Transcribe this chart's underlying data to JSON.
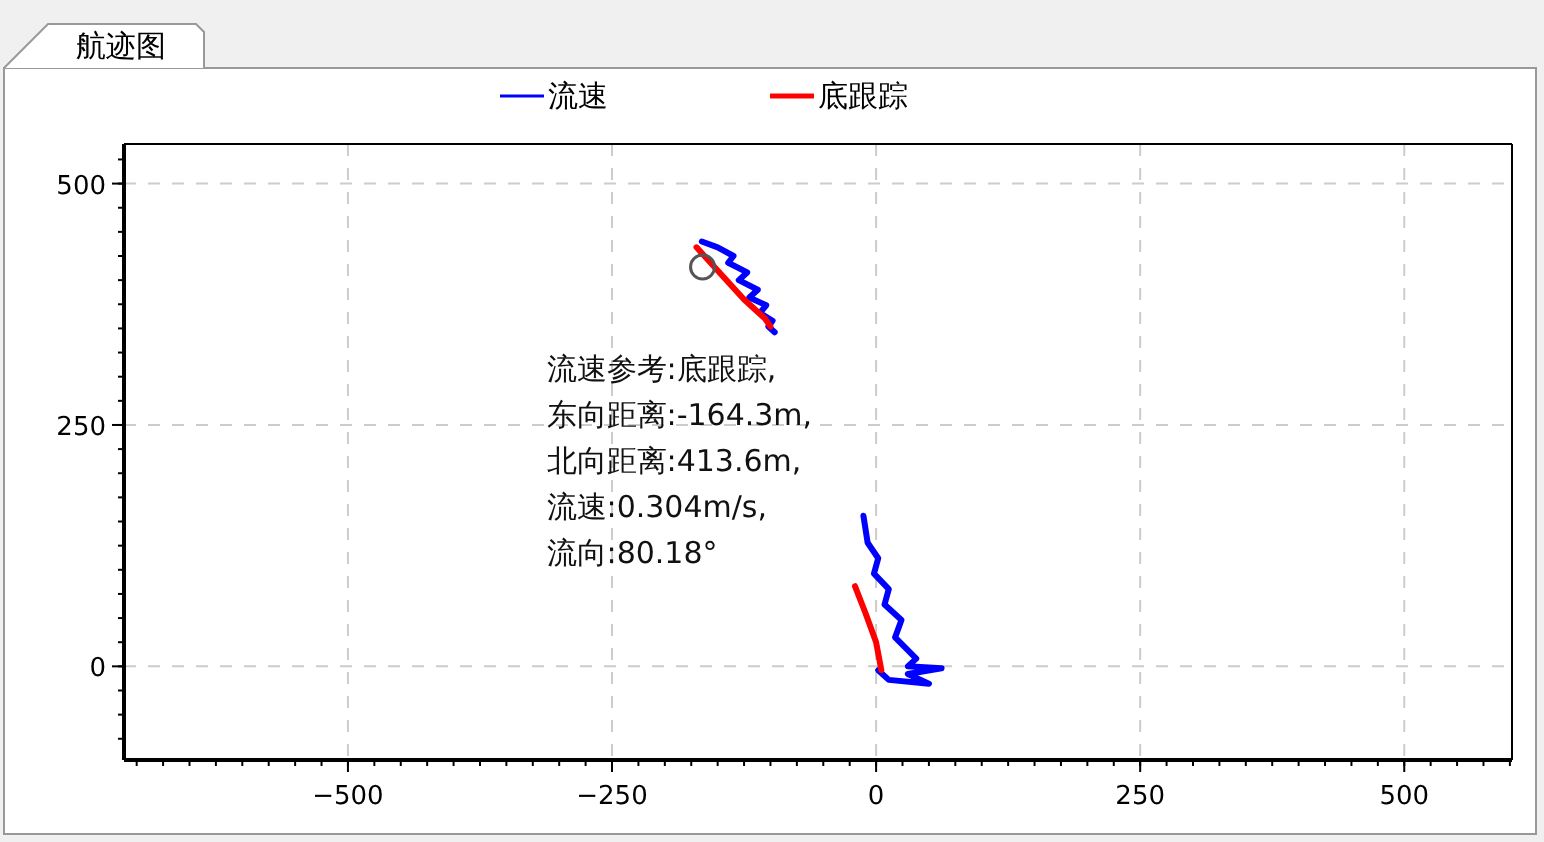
{
  "chart_data": {
    "type": "line",
    "title": "航迹图",
    "xlim": [
      -712,
      602
    ],
    "ylim": [
      -97,
      541
    ],
    "xticks": [
      -500,
      -250,
      0,
      250,
      500
    ],
    "yticks": [
      0,
      250,
      500
    ],
    "grid": true,
    "legend": "top",
    "marker": "none",
    "line_style": "solid",
    "series": [
      {
        "name": "流速",
        "color": "#0000ff",
        "x": [
          -165,
          -150,
          -135,
          -140,
          -122,
          -130,
          -112,
          -120,
          -104,
          -110,
          -98,
          -102,
          -96,
          null,
          -12,
          -8,
          2,
          -2,
          12,
          8,
          24,
          18,
          38,
          30,
          62,
          30,
          50,
          12,
          2
        ],
        "values": [
          440,
          434,
          425,
          418,
          408,
          400,
          390,
          382,
          374,
          366,
          358,
          352,
          346,
          null,
          156,
          128,
          112,
          96,
          80,
          64,
          48,
          30,
          8,
          0,
          -2,
          -8,
          -18,
          -14,
          -4
        ]
      },
      {
        "name": "底跟踪",
        "color": "#ff0000",
        "x": [
          -170,
          -150,
          -125,
          -105,
          -100,
          null,
          -20,
          -10,
          0,
          5
        ],
        "values": [
          434,
          410,
          380,
          360,
          352,
          null,
          83,
          55,
          25,
          -4
        ]
      }
    ],
    "annotations": [
      {
        "text": "流速参考:底跟踪,\n东向距离:-164.3m,\n北向距离:413.6m,\n流速:0.304m/s,\n流向:80.18°",
        "x": -164.3,
        "y": 413.6
      }
    ]
  }
}
